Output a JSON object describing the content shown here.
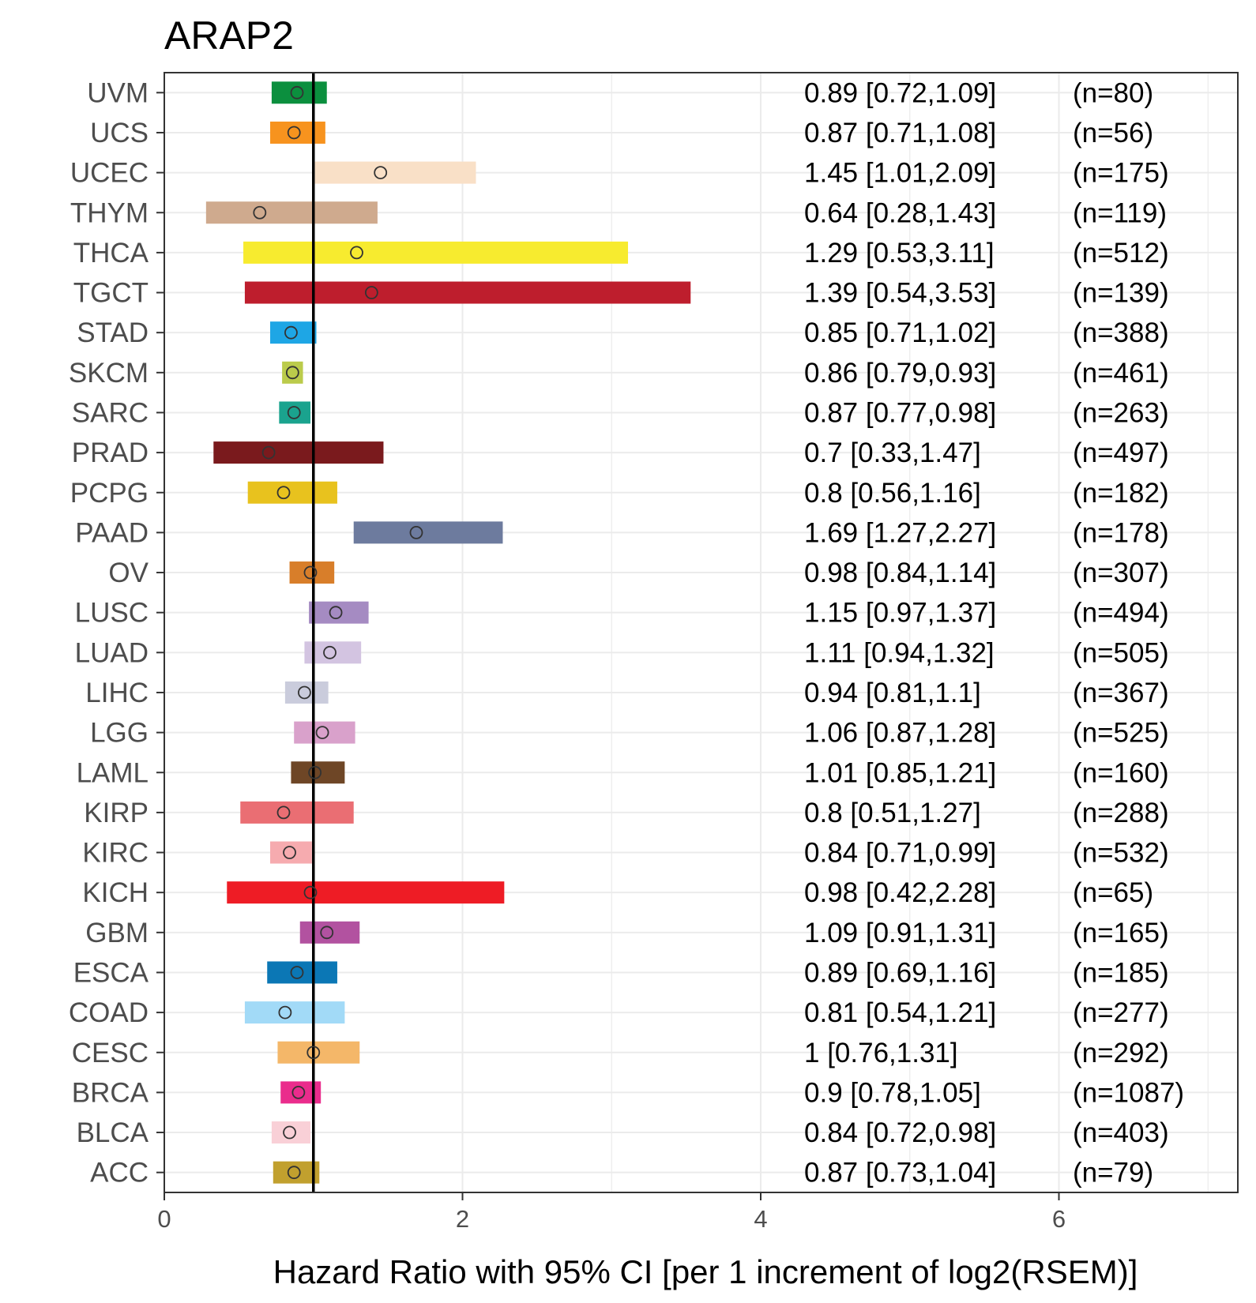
{
  "chart_data": {
    "type": "forest",
    "title": "ARAP2",
    "xlabel": "Hazard Ratio with 95% CI [per 1 increment of log2(RSEM)]",
    "ylabel": "",
    "xlim": [
      0,
      7.2
    ],
    "xticks": [
      0,
      2,
      4,
      6
    ],
    "reference_line": 1,
    "grid": true,
    "rows": [
      {
        "label": "UVM",
        "hr": 0.89,
        "lo": 0.72,
        "hi": 1.09,
        "text": "0.89 [0.72,1.09]",
        "n": "(n=80)",
        "color": "#0B8F3E"
      },
      {
        "label": "UCS",
        "hr": 0.87,
        "lo": 0.71,
        "hi": 1.08,
        "text": "0.87 [0.71,1.08]",
        "n": "(n=56)",
        "color": "#F7931E"
      },
      {
        "label": "UCEC",
        "hr": 1.45,
        "lo": 1.01,
        "hi": 2.09,
        "text": "1.45 [1.01,2.09]",
        "n": "(n=175)",
        "color": "#F9E0C7"
      },
      {
        "label": "THYM",
        "hr": 0.64,
        "lo": 0.28,
        "hi": 1.43,
        "text": "0.64 [0.28,1.43]",
        "n": "(n=119)",
        "color": "#CFAA8E"
      },
      {
        "label": "THCA",
        "hr": 1.29,
        "lo": 0.53,
        "hi": 3.11,
        "text": "1.29 [0.53,3.11]",
        "n": "(n=512)",
        "color": "#F7EB2F"
      },
      {
        "label": "TGCT",
        "hr": 1.39,
        "lo": 0.54,
        "hi": 3.53,
        "text": "1.39 [0.54,3.53]",
        "n": "(n=139)",
        "color": "#BE1E2D"
      },
      {
        "label": "STAD",
        "hr": 0.85,
        "lo": 0.71,
        "hi": 1.02,
        "text": "0.85 [0.71,1.02]",
        "n": "(n=388)",
        "color": "#1EA6E5"
      },
      {
        "label": "SKCM",
        "hr": 0.86,
        "lo": 0.79,
        "hi": 0.93,
        "text": "0.86 [0.79,0.93]",
        "n": "(n=461)",
        "color": "#BBCB4B"
      },
      {
        "label": "SARC",
        "hr": 0.87,
        "lo": 0.77,
        "hi": 0.98,
        "text": "0.87 [0.77,0.98]",
        "n": "(n=263)",
        "color": "#1AA38E"
      },
      {
        "label": "PRAD",
        "hr": 0.7,
        "lo": 0.33,
        "hi": 1.47,
        "text": "0.7 [0.33,1.47]",
        "n": "(n=497)",
        "color": "#7A1A1D"
      },
      {
        "label": "PCPG",
        "hr": 0.8,
        "lo": 0.56,
        "hi": 1.16,
        "text": "0.8 [0.56,1.16]",
        "n": "(n=182)",
        "color": "#E8C21E"
      },
      {
        "label": "PAAD",
        "hr": 1.69,
        "lo": 1.27,
        "hi": 2.27,
        "text": "1.69 [1.27,2.27]",
        "n": "(n=178)",
        "color": "#6D7B9E"
      },
      {
        "label": "OV",
        "hr": 0.98,
        "lo": 0.84,
        "hi": 1.14,
        "text": "0.98 [0.84,1.14]",
        "n": "(n=307)",
        "color": "#D87E2A"
      },
      {
        "label": "LUSC",
        "hr": 1.15,
        "lo": 0.97,
        "hi": 1.37,
        "text": "1.15 [0.97,1.37]",
        "n": "(n=494)",
        "color": "#A58BC2"
      },
      {
        "label": "LUAD",
        "hr": 1.11,
        "lo": 0.94,
        "hi": 1.32,
        "text": "1.11 [0.94,1.32]",
        "n": "(n=505)",
        "color": "#D3C4E1"
      },
      {
        "label": "LIHC",
        "hr": 0.94,
        "lo": 0.81,
        "hi": 1.1,
        "text": "0.94 [0.81,1.1]",
        "n": "(n=367)",
        "color": "#CACCDC"
      },
      {
        "label": "LGG",
        "hr": 1.06,
        "lo": 0.87,
        "hi": 1.28,
        "text": "1.06 [0.87,1.28]",
        "n": "(n=525)",
        "color": "#D9A1CB"
      },
      {
        "label": "LAML",
        "hr": 1.01,
        "lo": 0.85,
        "hi": 1.21,
        "text": "1.01 [0.85,1.21]",
        "n": "(n=160)",
        "color": "#6E4626"
      },
      {
        "label": "KIRP",
        "hr": 0.8,
        "lo": 0.51,
        "hi": 1.27,
        "text": "0.8 [0.51,1.27]",
        "n": "(n=288)",
        "color": "#EA6E73"
      },
      {
        "label": "KIRC",
        "hr": 0.84,
        "lo": 0.71,
        "hi": 0.99,
        "text": "0.84 [0.71,0.99]",
        "n": "(n=532)",
        "color": "#F6ABAF"
      },
      {
        "label": "KICH",
        "hr": 0.98,
        "lo": 0.42,
        "hi": 2.28,
        "text": "0.98 [0.42,2.28]",
        "n": "(n=65)",
        "color": "#EE1C25"
      },
      {
        "label": "GBM",
        "hr": 1.09,
        "lo": 0.91,
        "hi": 1.31,
        "text": "1.09 [0.91,1.31]",
        "n": "(n=165)",
        "color": "#B252A0"
      },
      {
        "label": "ESCA",
        "hr": 0.89,
        "lo": 0.69,
        "hi": 1.16,
        "text": "0.89 [0.69,1.16]",
        "n": "(n=185)",
        "color": "#0B77B5"
      },
      {
        "label": "COAD",
        "hr": 0.81,
        "lo": 0.54,
        "hi": 1.21,
        "text": "0.81 [0.54,1.21]",
        "n": "(n=277)",
        "color": "#A2DAF7"
      },
      {
        "label": "CESC",
        "hr": 1,
        "lo": 0.76,
        "hi": 1.31,
        "text": "1 [0.76,1.31]",
        "n": "(n=292)",
        "color": "#F4B769"
      },
      {
        "label": "BRCA",
        "hr": 0.9,
        "lo": 0.78,
        "hi": 1.05,
        "text": "0.9 [0.78,1.05]",
        "n": "(n=1087)",
        "color": "#EA2C8C"
      },
      {
        "label": "BLCA",
        "hr": 0.84,
        "lo": 0.72,
        "hi": 0.98,
        "text": "0.84 [0.72,0.98]",
        "n": "(n=403)",
        "color": "#F9D0D7"
      },
      {
        "label": "ACC",
        "hr": 0.87,
        "lo": 0.73,
        "hi": 1.04,
        "text": "0.87 [0.73,1.04]",
        "n": "(n=79)",
        "color": "#C1A02E"
      }
    ]
  }
}
